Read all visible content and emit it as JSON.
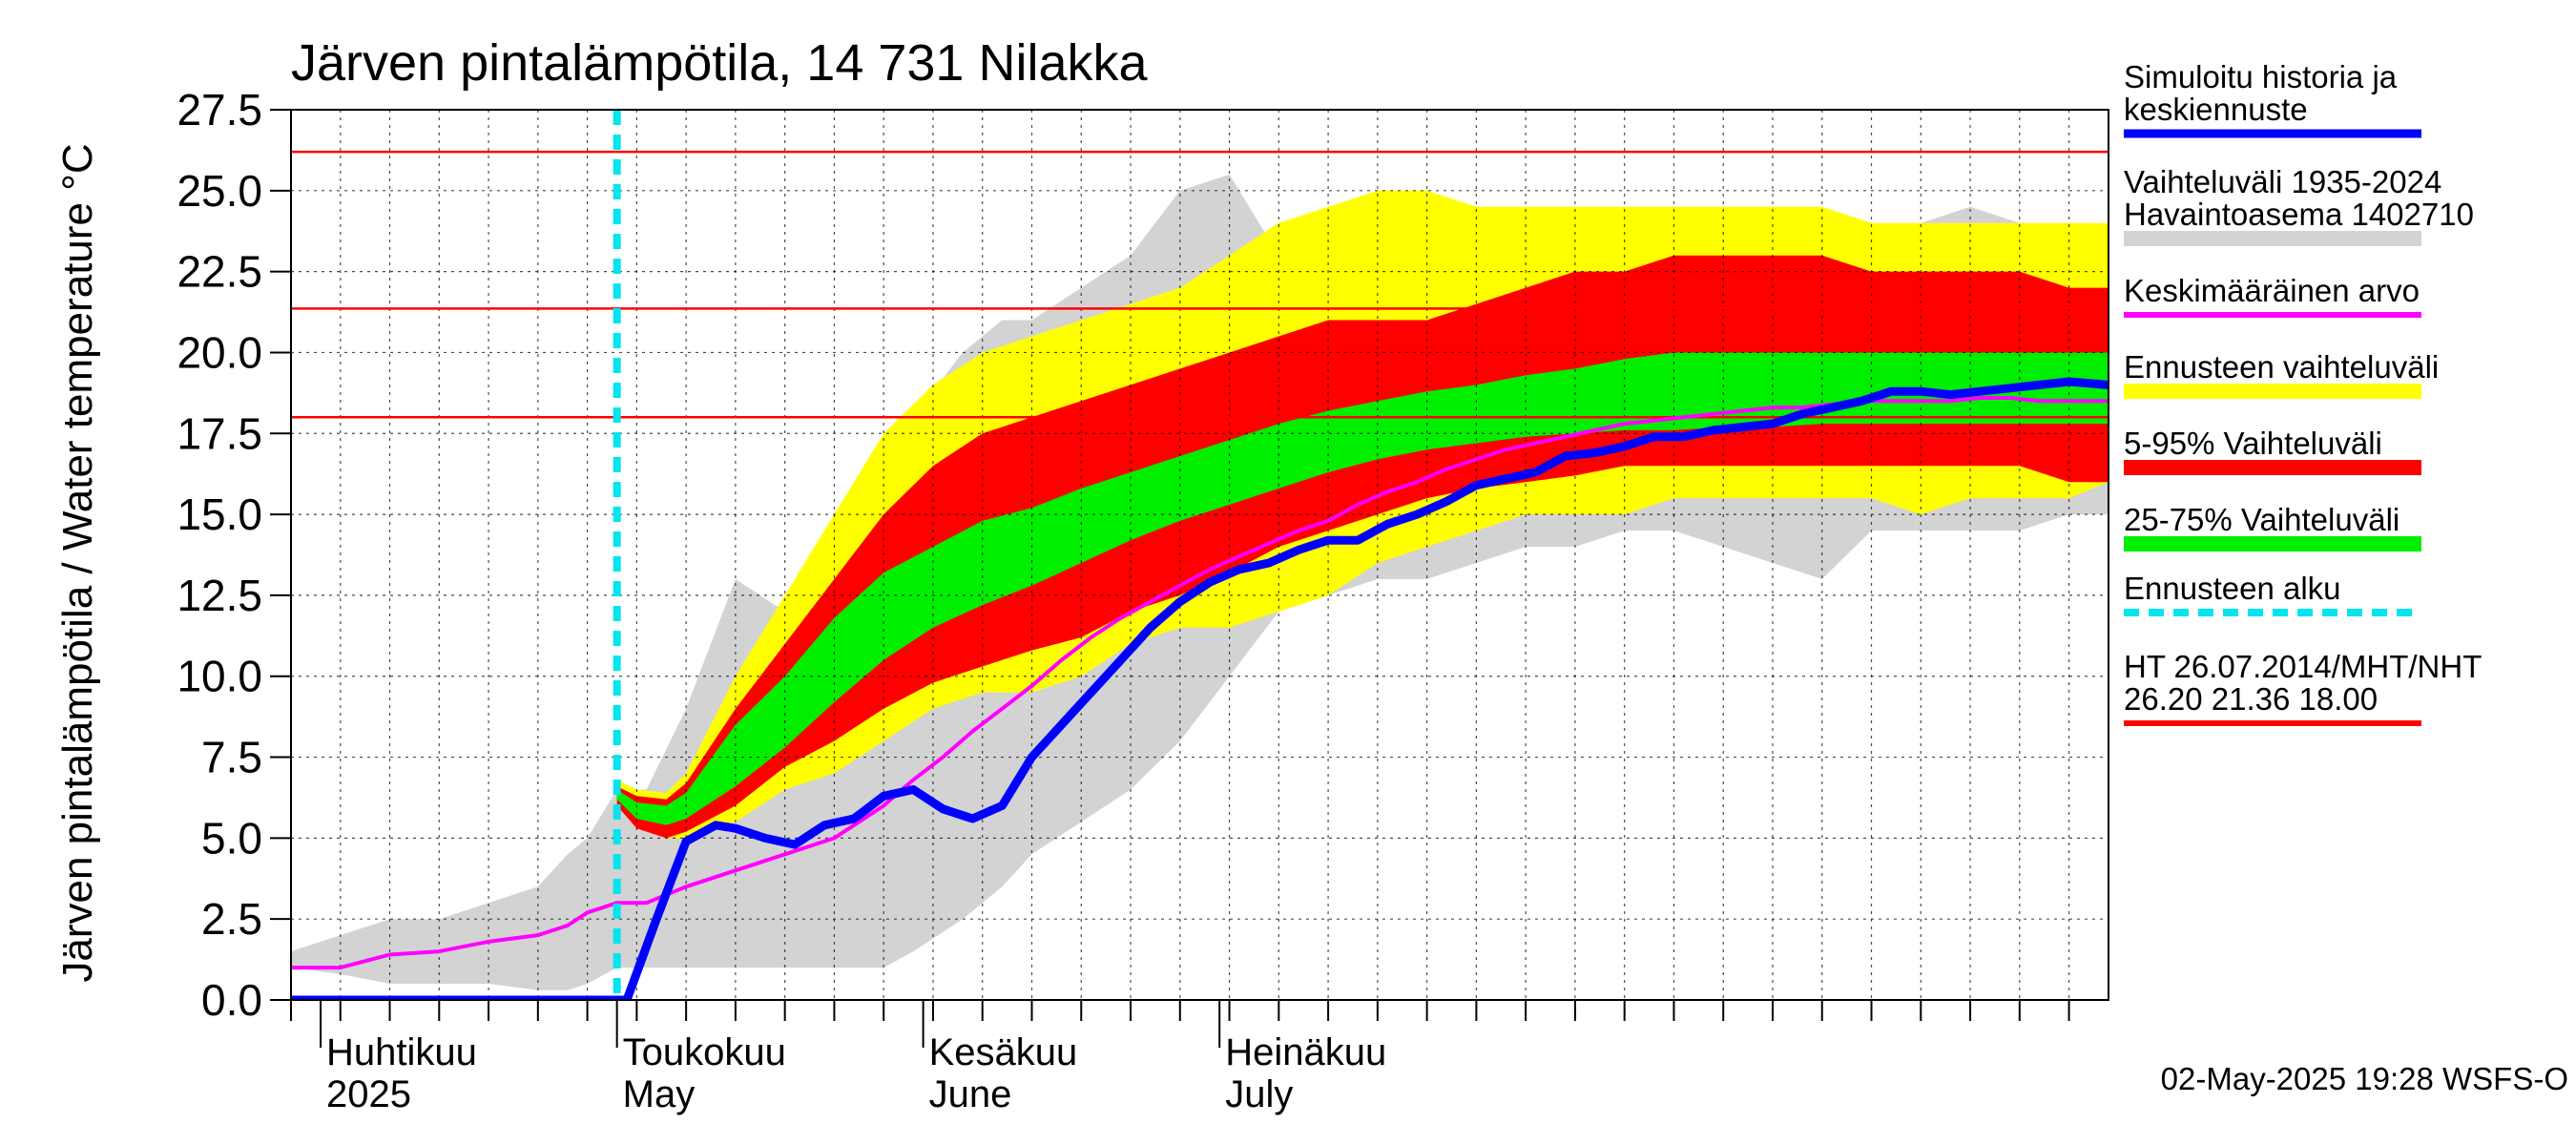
{
  "chart_data": {
    "type": "area",
    "title": "Järven pintalämpötila, 14 731 Nilakka",
    "ylabel": "Järven pintalämpötila / Water temperature °C",
    "ylim": [
      0,
      27.5
    ],
    "yticks": [
      "0.0",
      "2.5",
      "5.0",
      "7.5",
      "10.0",
      "12.5",
      "15.0",
      "17.5",
      "20.0",
      "22.5",
      "25.0",
      "27.5"
    ],
    "xlim": [
      0,
      184
    ],
    "x_unit": "days from 2025-03-29",
    "month_labels": [
      {
        "fi": "Huhtikuu",
        "en": "2025",
        "start": 3
      },
      {
        "fi": "Toukokuu",
        "en": "May",
        "start": 33
      },
      {
        "fi": "Kesäkuu",
        "en": "June",
        "start": 64
      },
      {
        "fi": "Heinäkuu",
        "en": "July",
        "start": 94
      }
    ],
    "forecast_start": 33,
    "reference_lines": [
      {
        "label": "HT 26.07.2014",
        "value": 26.2
      },
      {
        "label": "MHT",
        "value": 21.36
      },
      {
        "label": "NHT",
        "value": 18.0
      }
    ],
    "series": [
      {
        "name": "Vaihteluväli 1935-2024 Havaintoasema 1402710",
        "color": "#d3d3d3",
        "x": [
          0,
          5,
          10,
          15,
          20,
          25,
          28,
          30,
          33,
          36,
          40,
          45,
          50,
          55,
          60,
          63,
          68,
          72,
          75,
          80,
          85,
          90,
          95,
          100,
          105,
          110,
          115,
          120,
          125,
          130,
          135,
          140,
          145,
          150,
          155,
          160,
          165,
          170,
          175,
          180,
          184
        ],
        "upper": [
          1.5,
          2.0,
          2.5,
          2.5,
          3.0,
          3.5,
          4.5,
          5.0,
          6.5,
          6.5,
          9.0,
          13.0,
          12.0,
          13.5,
          15.0,
          18.0,
          20.0,
          21.0,
          21.0,
          22.0,
          23.0,
          25.0,
          25.5,
          23.0,
          22.0,
          24.5,
          23.0,
          24.0,
          23.0,
          23.0,
          24.0,
          24.0,
          24.5,
          24.0,
          24.0,
          24.0,
          24.0,
          24.5,
          24.0,
          24.0,
          24.0
        ],
        "lower": [
          1.0,
          0.8,
          0.5,
          0.5,
          0.5,
          0.3,
          0.3,
          0.5,
          1.0,
          1.0,
          1.0,
          1.0,
          1.0,
          1.0,
          1.0,
          1.5,
          2.5,
          3.5,
          4.5,
          5.5,
          6.5,
          8.0,
          10.0,
          12.0,
          12.5,
          13.0,
          13.0,
          13.5,
          14.0,
          14.0,
          14.5,
          14.5,
          14.0,
          13.5,
          13.0,
          14.5,
          14.5,
          14.5,
          14.5,
          15.0,
          15.0
        ]
      },
      {
        "name": "Ennusteen vaihteluväli",
        "color": "#ffff00",
        "x": [
          33,
          35,
          38,
          40,
          45,
          50,
          55,
          60,
          65,
          70,
          75,
          80,
          85,
          90,
          95,
          100,
          105,
          110,
          115,
          120,
          125,
          130,
          135,
          140,
          145,
          150,
          155,
          160,
          165,
          170,
          175,
          180,
          184
        ],
        "upper": [
          6.8,
          6.5,
          6.4,
          7.0,
          10.0,
          12.5,
          15.0,
          17.5,
          19.0,
          20.0,
          20.5,
          21.0,
          21.5,
          22.0,
          23.0,
          24.0,
          24.5,
          25.0,
          25.0,
          24.5,
          24.5,
          24.5,
          24.5,
          24.5,
          24.5,
          24.5,
          24.5,
          24.0,
          24.0,
          24.0,
          24.0,
          24.0,
          24.0
        ],
        "lower": [
          6.0,
          5.4,
          5.0,
          5.0,
          5.5,
          6.5,
          7.0,
          8.0,
          9.0,
          9.5,
          9.5,
          10.0,
          11.0,
          11.5,
          11.5,
          12.0,
          12.5,
          13.5,
          14.0,
          14.5,
          15.0,
          15.0,
          15.0,
          15.5,
          15.5,
          15.5,
          15.5,
          15.5,
          15.0,
          15.5,
          15.5,
          15.5,
          16.0
        ]
      },
      {
        "name": "5-95% Vaihteluväli",
        "color": "#ff0000",
        "x": [
          33,
          35,
          38,
          40,
          45,
          50,
          55,
          60,
          65,
          70,
          75,
          80,
          85,
          90,
          95,
          100,
          105,
          110,
          115,
          120,
          125,
          130,
          135,
          140,
          145,
          150,
          155,
          160,
          165,
          170,
          175,
          180,
          184
        ],
        "upper": [
          6.6,
          6.3,
          6.2,
          6.7,
          9.0,
          11.0,
          13.0,
          15.0,
          16.5,
          17.5,
          18.0,
          18.5,
          19.0,
          19.5,
          20.0,
          20.5,
          21.0,
          21.0,
          21.0,
          21.5,
          22.0,
          22.5,
          22.5,
          23.0,
          23.0,
          23.0,
          23.0,
          22.5,
          22.5,
          22.5,
          22.5,
          22.0,
          22.0
        ],
        "lower": [
          6.0,
          5.3,
          5.0,
          5.2,
          6.0,
          7.2,
          8.0,
          9.0,
          9.8,
          10.3,
          10.8,
          11.2,
          12.0,
          12.5,
          13.2,
          14.0,
          14.5,
          15.0,
          15.5,
          15.8,
          16.0,
          16.2,
          16.5,
          16.5,
          16.5,
          16.5,
          16.5,
          16.5,
          16.5,
          16.5,
          16.5,
          16.0,
          16.0
        ]
      },
      {
        "name": "25-75% Vaihteluväli",
        "color": "#00ee00",
        "x": [
          33,
          35,
          38,
          40,
          45,
          50,
          55,
          60,
          65,
          70,
          75,
          80,
          85,
          90,
          95,
          100,
          105,
          110,
          115,
          120,
          125,
          130,
          135,
          140,
          145,
          150,
          155,
          160,
          165,
          170,
          175,
          180,
          184
        ],
        "upper": [
          6.5,
          6.1,
          6.0,
          6.4,
          8.5,
          10.0,
          11.8,
          13.2,
          14.0,
          14.8,
          15.2,
          15.8,
          16.3,
          16.8,
          17.3,
          17.8,
          18.2,
          18.5,
          18.8,
          19.0,
          19.3,
          19.5,
          19.8,
          20.0,
          20.0,
          20.0,
          20.0,
          20.0,
          20.0,
          20.0,
          20.0,
          20.0,
          20.0
        ],
        "lower": [
          6.2,
          5.6,
          5.4,
          5.6,
          6.6,
          7.8,
          9.2,
          10.5,
          11.5,
          12.2,
          12.8,
          13.5,
          14.2,
          14.8,
          15.3,
          15.8,
          16.3,
          16.7,
          17.0,
          17.2,
          17.4,
          17.5,
          17.6,
          17.6,
          17.7,
          17.7,
          17.8,
          17.8,
          17.8,
          17.8,
          17.8,
          17.8,
          17.8
        ]
      },
      {
        "name": "Simuloitu historia ja keskiennuste",
        "color": "#0000ff",
        "x": [
          0,
          5,
          10,
          15,
          18,
          20,
          22,
          25,
          27,
          30,
          32,
          34,
          37,
          40,
          43,
          45,
          48,
          51,
          54,
          57,
          60,
          63,
          66,
          69,
          72,
          75,
          78,
          81,
          84,
          87,
          90,
          93,
          96,
          99,
          102,
          105,
          108,
          111,
          114,
          117,
          120,
          123,
          126,
          129,
          132,
          135,
          138,
          141,
          144,
          147,
          150,
          153,
          156,
          159,
          162,
          165,
          168,
          171,
          174,
          177,
          180,
          184
        ],
        "values": [
          0,
          0,
          0,
          0,
          0,
          0,
          0,
          0,
          0,
          0,
          0,
          0.0,
          2.5,
          4.9,
          5.4,
          5.3,
          5.0,
          4.8,
          5.4,
          5.6,
          6.3,
          6.5,
          5.9,
          5.6,
          6.0,
          7.5,
          8.5,
          9.5,
          10.5,
          11.5,
          12.3,
          12.9,
          13.3,
          13.5,
          13.9,
          14.2,
          14.2,
          14.7,
          15.0,
          15.4,
          15.9,
          16.1,
          16.3,
          16.8,
          16.9,
          17.1,
          17.4,
          17.4,
          17.6,
          17.7,
          17.8,
          18.1,
          18.3,
          18.5,
          18.8,
          18.8,
          18.7,
          18.8,
          18.9,
          19.0,
          19.1,
          19.0
        ]
      },
      {
        "name": "Keskimääräinen arvo",
        "color": "#ff00ff",
        "x": [
          0,
          5,
          10,
          15,
          20,
          25,
          28,
          30,
          33,
          36,
          40,
          45,
          50,
          55,
          60,
          63,
          66,
          69,
          72,
          75,
          78,
          81,
          84,
          87,
          90,
          93,
          96,
          99,
          102,
          105,
          108,
          111,
          114,
          117,
          120,
          123,
          126,
          129,
          132,
          135,
          138,
          141,
          144,
          147,
          150,
          153,
          156,
          159,
          162,
          165,
          168,
          171,
          174,
          177,
          180,
          184
        ],
        "values": [
          1.0,
          1.0,
          1.4,
          1.5,
          1.8,
          2.0,
          2.3,
          2.7,
          3.0,
          3.0,
          3.5,
          4.0,
          4.5,
          5.0,
          6.0,
          6.8,
          7.5,
          8.3,
          9.0,
          9.7,
          10.5,
          11.2,
          11.8,
          12.3,
          12.8,
          13.3,
          13.7,
          14.1,
          14.5,
          14.8,
          15.3,
          15.7,
          16.0,
          16.4,
          16.7,
          17.0,
          17.2,
          17.4,
          17.6,
          17.8,
          17.9,
          18.0,
          18.1,
          18.2,
          18.3,
          18.3,
          18.4,
          18.5,
          18.5,
          18.5,
          18.5,
          18.6,
          18.6,
          18.5,
          18.5,
          18.5
        ]
      }
    ]
  },
  "legend": [
    {
      "label": "Simuloitu historia ja keskiennuste",
      "color": "#0000ff",
      "style": "line"
    },
    {
      "label": "Vaihteluväli 1935-2024 Havaintoasema 1402710",
      "color": "#d3d3d3",
      "style": "band"
    },
    {
      "label": "Keskimääräinen arvo",
      "color": "#ff00ff",
      "style": "line"
    },
    {
      "label": "Ennusteen vaihteluväli",
      "color": "#ffff00",
      "style": "band"
    },
    {
      "label": "5-95% Vaihteluväli",
      "color": "#ff0000",
      "style": "band"
    },
    {
      "label": "25-75% Vaihteluväli",
      "color": "#00ee00",
      "style": "band"
    },
    {
      "label": "Ennusteen alku",
      "color": "#00e5ee",
      "style": "dashed"
    },
    {
      "label": "HT 26.07.2014/MHT/NHT 26.20 21.36 18.00",
      "color": "#ff0000",
      "style": "line"
    }
  ],
  "footer": "02-May-2025 19:28 WSFS-O"
}
